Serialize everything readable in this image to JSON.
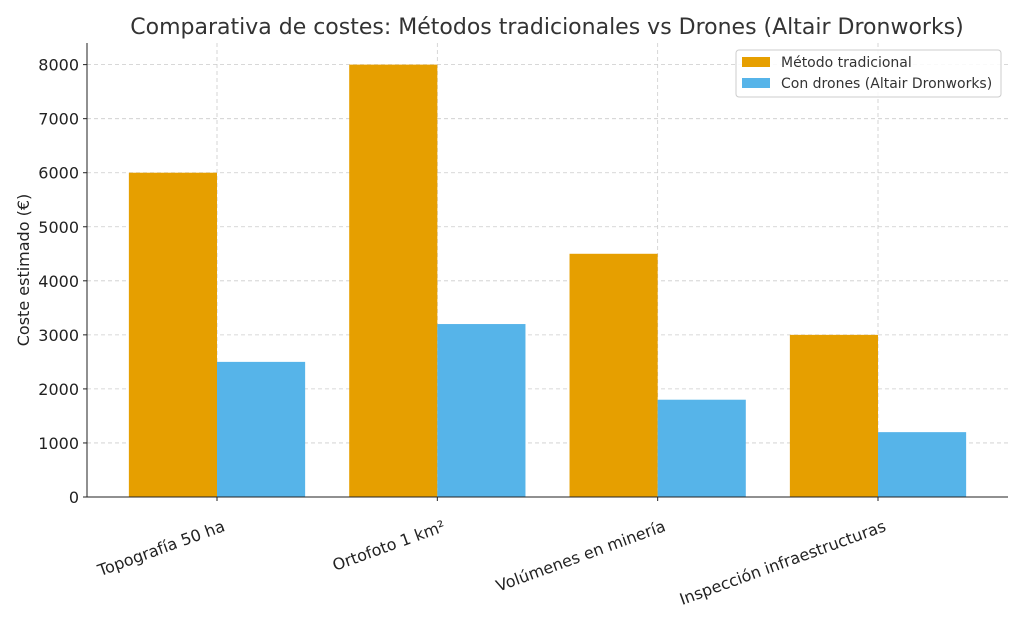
{
  "chart_data": {
    "type": "bar",
    "title": "Comparativa de costes: Métodos tradicionales vs Drones (Altair Dronworks)",
    "xlabel": "",
    "ylabel": "Coste estimado (€)",
    "categories": [
      "Topografía 50 ha",
      "Ortofoto 1 km²",
      "Volúmenes en minería",
      "Inspección infraestructuras"
    ],
    "series": [
      {
        "name": "Método tradicional",
        "values": [
          6000,
          8000,
          4500,
          3000
        ],
        "color": "#E69F00"
      },
      {
        "name": "Con drones (Altair Dronworks)",
        "values": [
          2500,
          3200,
          1800,
          1200
        ],
        "color": "#56B4E9"
      }
    ],
    "ylim": [
      0,
      8400
    ],
    "yticks": [
      0,
      1000,
      2000,
      3000,
      4000,
      5000,
      6000,
      7000,
      8000
    ],
    "grid": true,
    "legend_position": "top-right"
  }
}
